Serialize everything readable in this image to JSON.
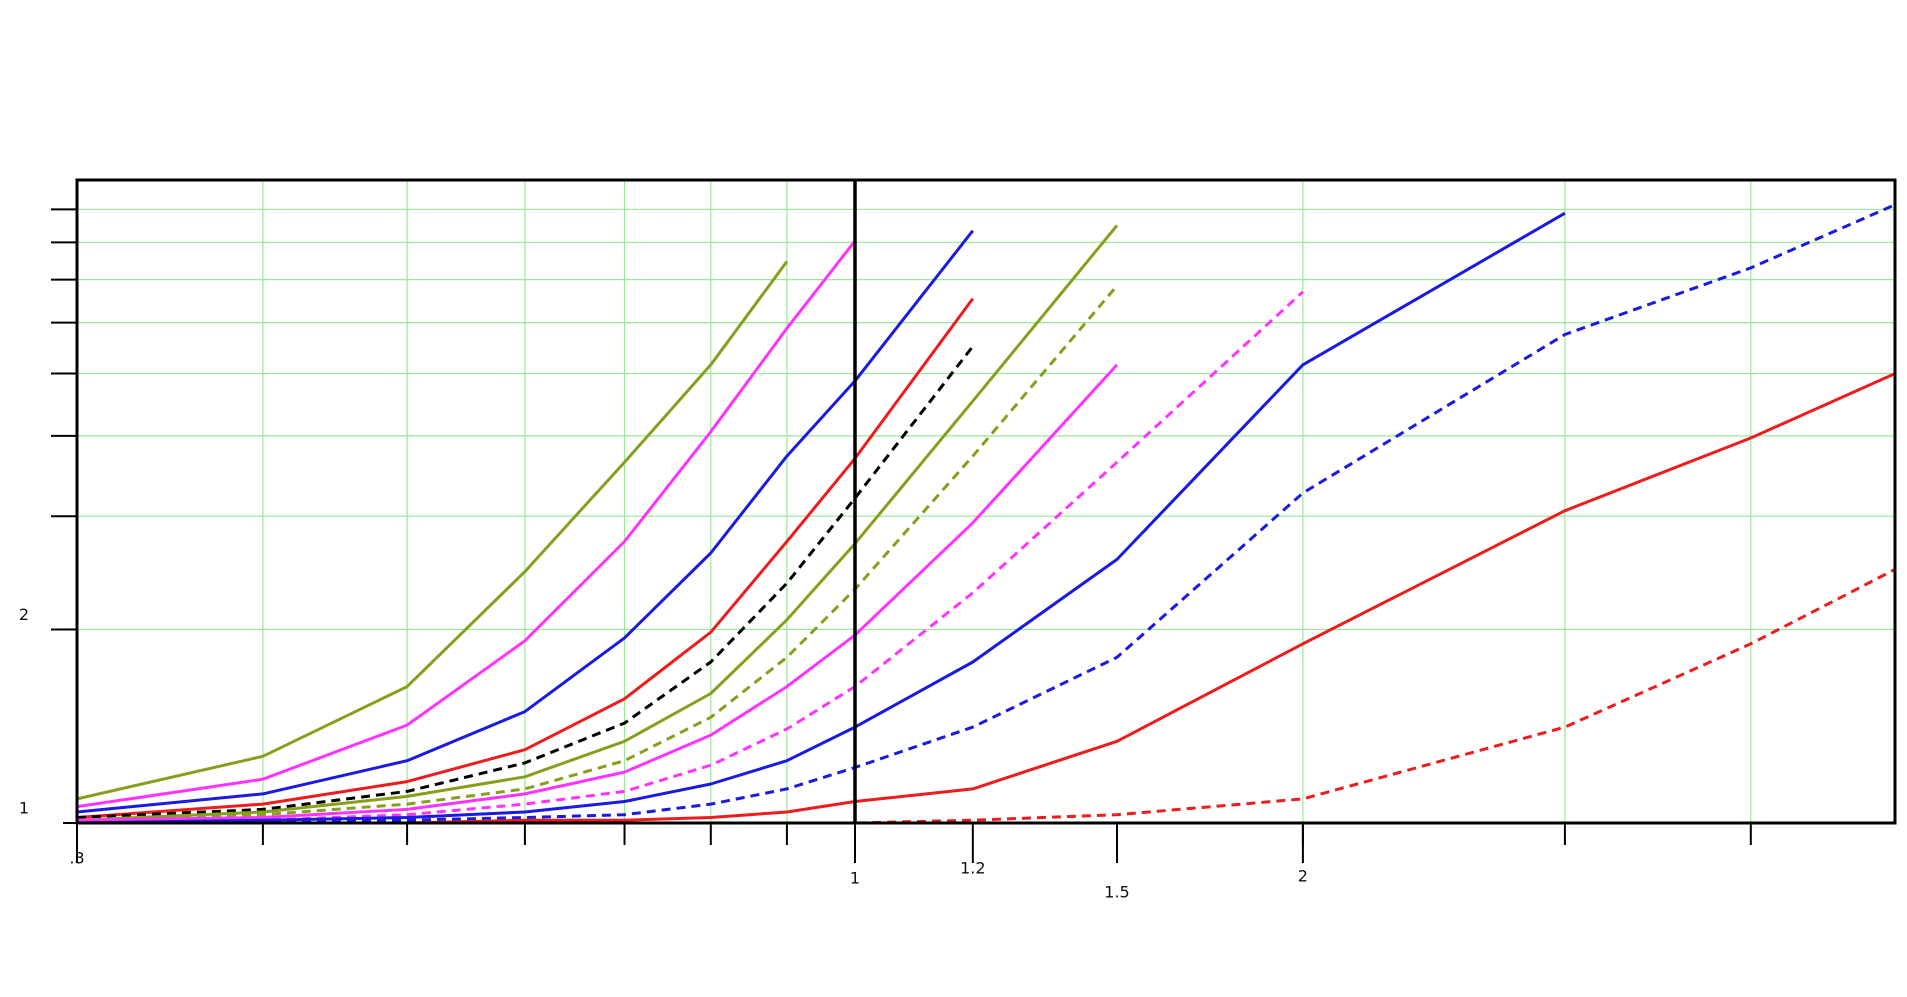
{
  "chart_data": {
    "type": "line",
    "xscale": "log",
    "yscale": "log",
    "xlim": [
      0.3,
      5
    ],
    "ylim": [
      1,
      10
    ],
    "xticks": [
      {
        "value": 0.3,
        "label": ".3"
      },
      1,
      1.2,
      1.5,
      2
    ],
    "yticks": [
      1,
      2
    ],
    "grid": true,
    "grid_color": "#9be89b",
    "xgrid": [
      0.4,
      0.5,
      0.6,
      0.7,
      0.8,
      0.9,
      2,
      3,
      4
    ],
    "ygrid": [
      2,
      3,
      4,
      5,
      6,
      7,
      8,
      9
    ],
    "vline": 1,
    "x": [
      0.3,
      0.4,
      0.5,
      0.6,
      0.7,
      0.8,
      0.9,
      1,
      1.2,
      1.5,
      2,
      3,
      4,
      5
    ],
    "series": [
      {
        "color": "#86a01e",
        "dash": false,
        "values": [
          1.09,
          1.27,
          1.63,
          2.46,
          3.64,
          5.16,
          7.47,
          null,
          null,
          null,
          null,
          null,
          null,
          null
        ]
      },
      {
        "color": "#ff33ff",
        "dash": false,
        "values": [
          1.06,
          1.17,
          1.42,
          1.92,
          2.74,
          4.06,
          5.88,
          8.04,
          null,
          null,
          null,
          null,
          null,
          null
        ]
      },
      {
        "color": "#1a1ae0",
        "dash": false,
        "values": [
          1.04,
          1.11,
          1.25,
          1.49,
          1.94,
          2.63,
          3.72,
          4.87,
          8.34,
          null,
          null,
          null,
          null,
          null
        ]
      },
      {
        "color": "#ee1c1c",
        "dash": false,
        "values": [
          1.02,
          1.07,
          1.16,
          1.3,
          1.56,
          1.98,
          2.74,
          3.69,
          6.54,
          null,
          null,
          null,
          null,
          null
        ]
      },
      {
        "color": "#000000",
        "dash": true,
        "values": [
          1.02,
          1.05,
          1.12,
          1.24,
          1.43,
          1.78,
          2.36,
          3.2,
          5.51,
          null,
          null,
          null,
          null,
          null
        ]
      },
      {
        "color": "#86a01e",
        "dash": false,
        "values": [
          1.01,
          1.04,
          1.1,
          1.18,
          1.34,
          1.59,
          2.07,
          2.72,
          4.53,
          8.5,
          null,
          null,
          null,
          null
        ]
      },
      {
        "color": "#86a01e",
        "dash": true,
        "values": [
          1.01,
          1.03,
          1.07,
          1.13,
          1.25,
          1.46,
          1.81,
          2.31,
          3.72,
          6.85,
          null,
          null,
          null,
          null
        ]
      },
      {
        "color": "#ff33ff",
        "dash": false,
        "values": [
          1.01,
          1.02,
          1.05,
          1.11,
          1.2,
          1.37,
          1.63,
          1.96,
          2.93,
          5.16,
          null,
          null,
          null,
          null
        ]
      },
      {
        "color": "#ff33ff",
        "dash": true,
        "values": [
          1.0,
          1.01,
          1.03,
          1.07,
          1.12,
          1.23,
          1.4,
          1.63,
          2.28,
          3.64,
          6.7,
          null,
          null,
          null
        ]
      },
      {
        "color": "#1a1ae0",
        "dash": false,
        "values": [
          1.0,
          1.01,
          1.02,
          1.04,
          1.08,
          1.15,
          1.25,
          1.41,
          1.78,
          2.57,
          5.16,
          8.88,
          null,
          null
        ]
      },
      {
        "color": "#1a1ae0",
        "dash": true,
        "values": [
          1.0,
          1.0,
          1.01,
          1.02,
          1.03,
          1.07,
          1.13,
          1.22,
          1.41,
          1.81,
          3.26,
          5.75,
          7.3,
          9.15
        ]
      },
      {
        "color": "#ee1c1c",
        "dash": false,
        "values": [
          1.0,
          1.0,
          1.0,
          1.01,
          1.01,
          1.02,
          1.04,
          1.08,
          1.13,
          1.34,
          1.9,
          3.06,
          3.97,
          5.0
        ]
      },
      {
        "color": "#ee1c1c",
        "dash": true,
        "values": [
          1.0,
          1.0,
          1.0,
          1.0,
          1.0,
          1.0,
          1.0,
          1.0,
          1.01,
          1.03,
          1.09,
          1.41,
          1.9,
          2.48
        ]
      }
    ]
  }
}
